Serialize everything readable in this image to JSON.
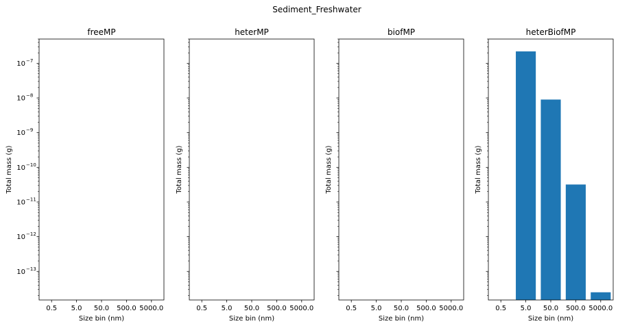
{
  "figure_title": "Sediment_Freshwater",
  "colors": {
    "bar": "#1f77b4",
    "axes": "#000000",
    "background": "#ffffff"
  },
  "chart_data": [
    {
      "type": "bar",
      "title": "freeMP",
      "xlabel": "Size bin (nm)",
      "ylabel": "Total mass (g)",
      "yscale": "log",
      "categories": [
        "0.5",
        "5.0",
        "50.0",
        "500.0",
        "5000.0"
      ],
      "values": [
        null,
        null,
        null,
        null,
        null
      ],
      "ylim": [
        1.5e-14,
        5e-07
      ],
      "y_tick_labels_shown": true
    },
    {
      "type": "bar",
      "title": "heterMP",
      "xlabel": "Size bin (nm)",
      "ylabel": "Total mass (g)",
      "yscale": "log",
      "categories": [
        "0.5",
        "5.0",
        "50.0",
        "500.0",
        "5000.0"
      ],
      "values": [
        null,
        null,
        null,
        null,
        null
      ],
      "ylim": [
        1.5e-14,
        5e-07
      ],
      "y_tick_labels_shown": false
    },
    {
      "type": "bar",
      "title": "biofMP",
      "xlabel": "Size bin (nm)",
      "ylabel": "Total mass (g)",
      "yscale": "log",
      "categories": [
        "0.5",
        "5.0",
        "50.0",
        "500.0",
        "5000.0"
      ],
      "values": [
        null,
        null,
        null,
        null,
        null
      ],
      "ylim": [
        1.5e-14,
        5e-07
      ],
      "y_tick_labels_shown": false
    },
    {
      "type": "bar",
      "title": "heterBiofMP",
      "xlabel": "Size bin (nm)",
      "ylabel": "Total mass (g)",
      "yscale": "log",
      "categories": [
        "0.5",
        "5.0",
        "50.0",
        "500.0",
        "5000.0"
      ],
      "values": [
        null,
        2.2e-07,
        9e-09,
        3.2e-11,
        2.5e-14
      ],
      "ylim": [
        1.5e-14,
        5e-07
      ],
      "y_tick_labels_shown": false
    }
  ]
}
